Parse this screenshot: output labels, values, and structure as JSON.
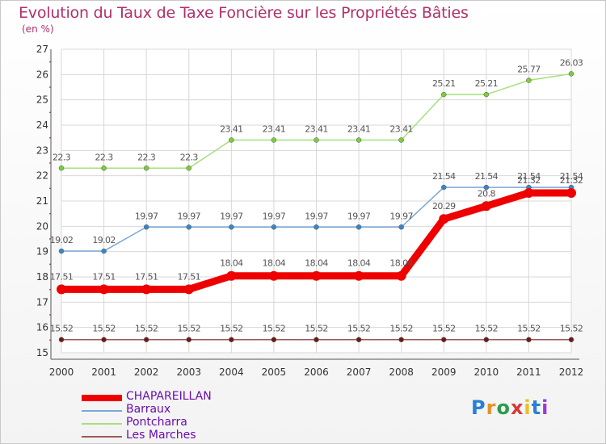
{
  "title": "Evolution du Taux de Taxe Foncière sur les Propriétés Bâties",
  "unit": "(en %)",
  "logo": {
    "text": "Proxiti",
    "colors": [
      "#2a7fd4",
      "#e8902a",
      "#2a9d4a",
      "#d43a3a",
      "#e8c02a",
      "#2a7fd4",
      "#9a3ad4"
    ]
  },
  "chart_data": {
    "type": "line",
    "title": "Evolution du Taux de Taxe Foncière sur les Propriétés Bâties",
    "ylabel": "(en %)",
    "xlabel": "",
    "ylim": [
      15,
      27
    ],
    "yticks": [
      "15",
      "16",
      "17",
      "18",
      "19",
      "20",
      "21",
      "22",
      "23",
      "24",
      "25",
      "26",
      "27"
    ],
    "categories": [
      "2000",
      "2001",
      "2002",
      "2003",
      "2004",
      "2005",
      "2006",
      "2007",
      "2008",
      "2009",
      "2010",
      "2011",
      "2012"
    ],
    "grid": true,
    "series": [
      {
        "name": "CHAPAREILLAN",
        "color": "#ee0000",
        "marker_color": "#ee0000",
        "values": [
          17.51,
          17.51,
          17.51,
          17.51,
          18.04,
          18.04,
          18.04,
          18.04,
          18.04,
          20.29,
          20.8,
          21.32,
          21.32
        ],
        "labels": [
          "17.51",
          "17.51",
          "17.51",
          "17.51",
          "18.04",
          "18.04",
          "18.04",
          "18.04",
          "18.04",
          "20.29",
          "20.8",
          "21.32",
          "21.32"
        ]
      },
      {
        "name": "Barraux",
        "color": "#7ba7d6",
        "marker_color": "#3a86c8",
        "values": [
          19.02,
          19.02,
          19.97,
          19.97,
          19.97,
          19.97,
          19.97,
          19.97,
          19.97,
          21.54,
          21.54,
          21.54,
          21.54
        ],
        "labels": [
          "19.02",
          "19.02",
          "19.97",
          "19.97",
          "19.97",
          "19.97",
          "19.97",
          "19.97",
          "19.97",
          "21.54",
          "21.54",
          "21.54",
          "21.54"
        ]
      },
      {
        "name": "Pontcharra",
        "color": "#a6e07a",
        "marker_color": "#7ccc3e",
        "values": [
          22.3,
          22.3,
          22.3,
          22.3,
          23.41,
          23.41,
          23.41,
          23.41,
          23.41,
          25.21,
          25.21,
          25.77,
          26.03
        ],
        "labels": [
          "22.3",
          "22.3",
          "22.3",
          "22.3",
          "23.41",
          "23.41",
          "23.41",
          "23.41",
          "23.41",
          "25.21",
          "25.21",
          "25.77",
          "26.03"
        ]
      },
      {
        "name": "Les Marches",
        "color": "#9a5a5a",
        "marker_color": "#6a1a1a",
        "values": [
          15.52,
          15.52,
          15.52,
          15.52,
          15.52,
          15.52,
          15.52,
          15.52,
          15.52,
          15.52,
          15.52,
          15.52,
          15.52
        ],
        "labels": [
          "15.52",
          "15.52",
          "15.52",
          "15.52",
          "15.52",
          "15.52",
          "15.52",
          "15.52",
          "15.52",
          "15.52",
          "15.52",
          "15.52",
          "15.52"
        ]
      }
    ],
    "legend": {
      "position": "bottom-left"
    }
  }
}
